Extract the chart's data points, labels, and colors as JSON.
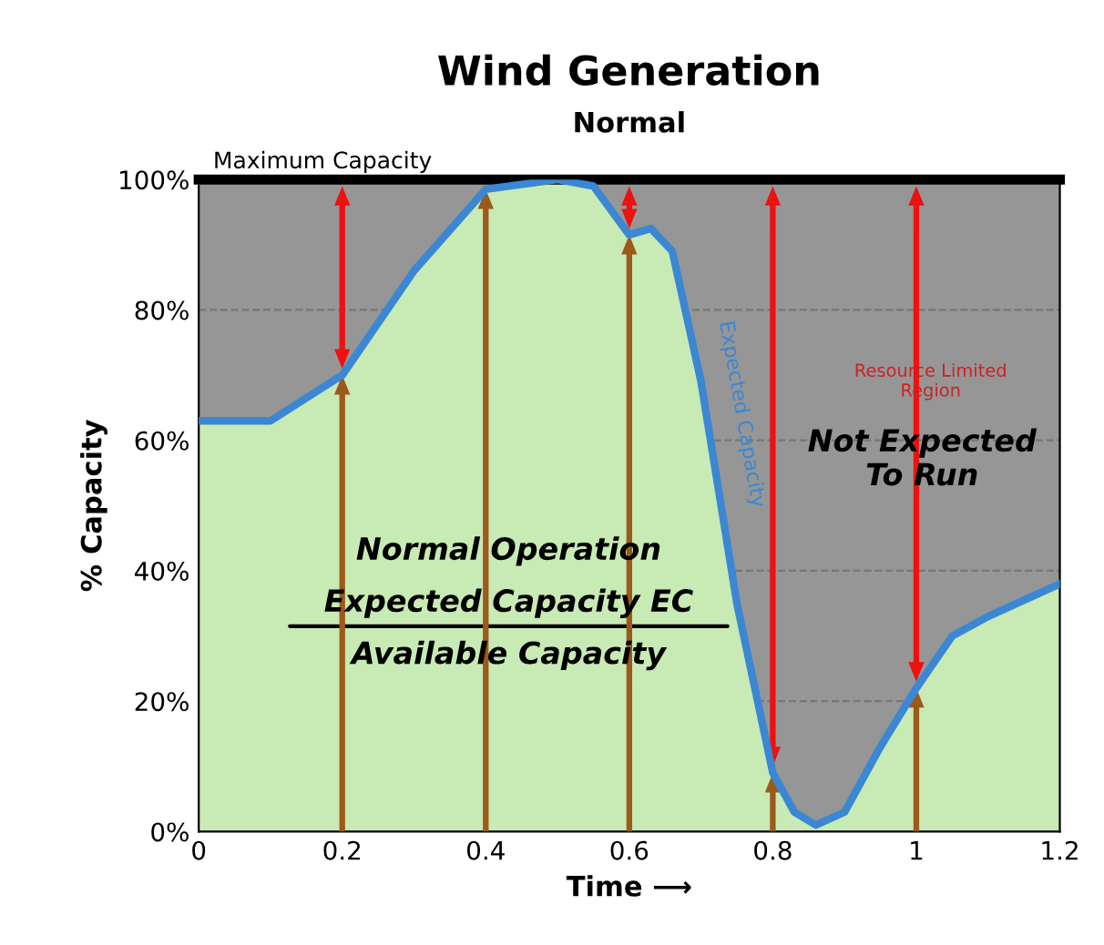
{
  "chart_data": {
    "type": "area",
    "title": "Wind Generation",
    "subtitle": "Normal",
    "xlabel": "Time ⟶",
    "ylabel": "% Capacity",
    "x": [
      0,
      0.1,
      0.2,
      0.3,
      0.4,
      0.5,
      0.55,
      0.6,
      0.63,
      0.66,
      0.7,
      0.75,
      0.8,
      0.83,
      0.86,
      0.9,
      0.95,
      1.0,
      1.05,
      1.1,
      1.2
    ],
    "series": [
      {
        "color": "#c8eab4",
        "values": [
          63,
          63,
          70,
          86,
          98.5,
          100,
          99,
          91.5,
          92.5,
          89,
          69,
          35,
          9,
          3,
          1,
          3,
          13,
          22,
          30,
          33,
          38
        ]
      },
      {
        "type": "line",
        "name": "Expected Capacity",
        "color": "#3b87d4",
        "values": [
          63,
          63,
          70,
          86,
          98.5,
          100,
          99,
          91.5,
          92.5,
          89,
          69,
          35,
          9,
          3,
          1,
          3,
          13,
          22,
          30,
          33,
          38
        ]
      }
    ],
    "xlim": [
      0,
      1.2
    ],
    "xticks": [
      0,
      0.2,
      0.4,
      0.6,
      0.8,
      1,
      1.2
    ],
    "ylim": [
      0,
      100
    ],
    "yticks": [
      {
        "value": 0,
        "label": "0%"
      },
      {
        "value": 20,
        "label": "20%"
      },
      {
        "value": 40,
        "label": "40%"
      },
      {
        "value": 60,
        "label": "60%"
      },
      {
        "value": 80,
        "label": "80%"
      },
      {
        "value": 100,
        "label": "100%"
      }
    ],
    "grid": "y",
    "legend": false,
    "ref_lines": [
      {
        "axis": "y",
        "value": 100,
        "label": "Maximum Capacity",
        "color": "#000000"
      }
    ],
    "annotations": [
      "Resource Limited Region",
      "Not Expected To Run",
      "Normal Operation",
      "Expected Capacity EC",
      "Available Capacity"
    ]
  }
}
